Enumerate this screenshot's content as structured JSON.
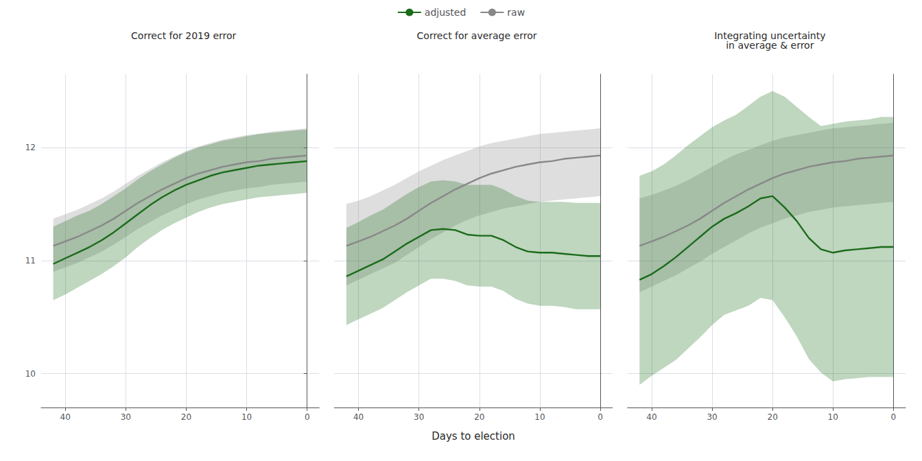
{
  "chart_data": [
    {
      "type": "line",
      "title": "Correct for 2019 error",
      "x": [
        42,
        40,
        38,
        36,
        34,
        32,
        30,
        28,
        26,
        24,
        22,
        20,
        18,
        16,
        14,
        12,
        10,
        8,
        6,
        4,
        2,
        0
      ],
      "series": [
        {
          "name": "adjusted",
          "color": "#1a6b1a",
          "values": [
            10.97,
            11.02,
            11.07,
            11.12,
            11.18,
            11.25,
            11.33,
            11.41,
            11.49,
            11.56,
            11.62,
            11.67,
            11.71,
            11.75,
            11.78,
            11.8,
            11.82,
            11.84,
            11.85,
            11.86,
            11.87,
            11.88
          ],
          "lower": [
            10.65,
            10.7,
            10.76,
            10.82,
            10.88,
            10.95,
            11.03,
            11.12,
            11.2,
            11.27,
            11.33,
            11.38,
            11.43,
            11.47,
            11.5,
            11.52,
            11.54,
            11.56,
            11.57,
            11.58,
            11.59,
            11.6
          ],
          "upper": [
            11.3,
            11.35,
            11.4,
            11.44,
            11.5,
            11.57,
            11.64,
            11.72,
            11.79,
            11.85,
            11.91,
            11.96,
            12.0,
            12.03,
            12.06,
            12.08,
            12.1,
            12.12,
            12.13,
            12.14,
            12.15,
            12.16
          ]
        },
        {
          "name": "raw",
          "color": "#888888",
          "values": [
            11.13,
            11.17,
            11.21,
            11.26,
            11.31,
            11.37,
            11.44,
            11.51,
            11.57,
            11.63,
            11.68,
            11.73,
            11.77,
            11.8,
            11.83,
            11.85,
            11.87,
            11.88,
            11.9,
            11.91,
            11.92,
            11.93
          ],
          "lower": [
            10.9,
            10.94,
            10.98,
            11.03,
            11.08,
            11.14,
            11.21,
            11.28,
            11.34,
            11.4,
            11.45,
            11.5,
            11.54,
            11.57,
            11.6,
            11.62,
            11.64,
            11.65,
            11.67,
            11.68,
            11.69,
            11.7
          ],
          "upper": [
            11.37,
            11.41,
            11.45,
            11.5,
            11.55,
            11.61,
            11.68,
            11.75,
            11.81,
            11.87,
            11.92,
            11.97,
            12.01,
            12.04,
            12.07,
            12.09,
            12.11,
            12.12,
            12.14,
            12.15,
            12.16,
            12.17
          ]
        }
      ],
      "xlim": [
        44,
        -2
      ],
      "ylim": [
        9.7,
        12.65
      ],
      "xticks": [
        40,
        30,
        20,
        10,
        0
      ],
      "yticks": [
        10,
        11,
        12
      ],
      "grid": true,
      "legend": "top"
    },
    {
      "type": "line",
      "title": "Correct for average error",
      "xlabel": "Days to election",
      "x": [
        42,
        40,
        38,
        36,
        34,
        32,
        30,
        28,
        26,
        24,
        22,
        20,
        18,
        16,
        14,
        12,
        10,
        8,
        6,
        4,
        2,
        0
      ],
      "series": [
        {
          "name": "adjusted",
          "color": "#1a6b1a",
          "values": [
            10.86,
            10.91,
            10.96,
            11.01,
            11.08,
            11.15,
            11.21,
            11.27,
            11.28,
            11.27,
            11.23,
            11.22,
            11.22,
            11.18,
            11.12,
            11.08,
            11.07,
            11.07,
            11.06,
            11.05,
            11.04,
            11.04
          ],
          "lower": [
            10.43,
            10.48,
            10.53,
            10.58,
            10.65,
            10.72,
            10.78,
            10.84,
            10.84,
            10.82,
            10.78,
            10.77,
            10.77,
            10.73,
            10.66,
            10.62,
            10.6,
            10.6,
            10.59,
            10.57,
            10.57,
            10.57
          ],
          "upper": [
            11.29,
            11.34,
            11.4,
            11.45,
            11.52,
            11.59,
            11.65,
            11.7,
            11.71,
            11.7,
            11.67,
            11.67,
            11.67,
            11.63,
            11.57,
            11.53,
            11.52,
            11.52,
            11.52,
            11.51,
            11.51,
            11.51
          ]
        },
        {
          "name": "raw",
          "color": "#888888",
          "values": [
            11.13,
            11.17,
            11.21,
            11.26,
            11.31,
            11.37,
            11.44,
            11.51,
            11.57,
            11.63,
            11.68,
            11.73,
            11.77,
            11.8,
            11.83,
            11.85,
            11.87,
            11.88,
            11.9,
            11.91,
            11.92,
            11.93
          ],
          "lower": [
            10.78,
            10.83,
            10.88,
            10.93,
            10.98,
            11.05,
            11.12,
            11.19,
            11.25,
            11.31,
            11.36,
            11.4,
            11.43,
            11.46,
            11.48,
            11.5,
            11.52,
            11.53,
            11.54,
            11.55,
            11.56,
            11.57
          ],
          "upper": [
            11.5,
            11.53,
            11.57,
            11.62,
            11.67,
            11.73,
            11.79,
            11.84,
            11.89,
            11.93,
            11.97,
            12.01,
            12.04,
            12.06,
            12.08,
            12.1,
            12.12,
            12.13,
            12.14,
            12.15,
            12.16,
            12.17
          ]
        }
      ],
      "xlim": [
        44,
        -2
      ],
      "ylim": [
        9.7,
        12.65
      ],
      "xticks": [
        40,
        30,
        20,
        10,
        0
      ],
      "yticks": [
        10,
        11,
        12
      ],
      "grid": true,
      "legend": "top",
      "tick_labels": "x"
    },
    {
      "type": "line",
      "title": "Integrating uncertainty\nin average & error",
      "x": [
        42,
        40,
        38,
        36,
        34,
        32,
        30,
        28,
        26,
        24,
        22,
        20,
        18,
        16,
        14,
        12,
        10,
        8,
        6,
        4,
        2,
        0
      ],
      "series": [
        {
          "name": "adjusted",
          "color": "#1a6b1a",
          "values": [
            10.83,
            10.88,
            10.95,
            11.03,
            11.12,
            11.21,
            11.3,
            11.37,
            11.42,
            11.48,
            11.55,
            11.57,
            11.47,
            11.35,
            11.2,
            11.1,
            11.07,
            11.09,
            11.1,
            11.11,
            11.12,
            11.12
          ],
          "lower": [
            9.9,
            9.98,
            10.05,
            10.12,
            10.22,
            10.32,
            10.43,
            10.52,
            10.56,
            10.6,
            10.67,
            10.65,
            10.5,
            10.33,
            10.13,
            10.01,
            9.93,
            9.95,
            9.96,
            9.97,
            9.97,
            9.97
          ],
          "upper": [
            11.75,
            11.79,
            11.85,
            11.93,
            12.02,
            12.1,
            12.18,
            12.24,
            12.29,
            12.37,
            12.45,
            12.5,
            12.45,
            12.36,
            12.27,
            12.19,
            12.21,
            12.23,
            12.24,
            12.25,
            12.27,
            12.27
          ]
        },
        {
          "name": "raw",
          "color": "#888888",
          "values": [
            11.13,
            11.17,
            11.21,
            11.26,
            11.31,
            11.37,
            11.44,
            11.51,
            11.57,
            11.63,
            11.68,
            11.73,
            11.77,
            11.8,
            11.83,
            11.85,
            11.87,
            11.88,
            11.9,
            11.91,
            11.92,
            11.93
          ],
          "lower": [
            10.72,
            10.77,
            10.82,
            10.87,
            10.93,
            10.99,
            11.06,
            11.12,
            11.18,
            11.24,
            11.29,
            11.33,
            11.37,
            11.4,
            11.43,
            11.45,
            11.47,
            11.48,
            11.49,
            11.5,
            11.51,
            11.52
          ],
          "upper": [
            11.55,
            11.58,
            11.62,
            11.66,
            11.71,
            11.77,
            11.83,
            11.89,
            11.94,
            11.98,
            12.02,
            12.06,
            12.09,
            12.11,
            12.13,
            12.15,
            12.17,
            12.18,
            12.19,
            12.2,
            12.21,
            12.22
          ]
        }
      ],
      "xlim": [
        44,
        -2
      ],
      "ylim": [
        9.7,
        12.65
      ],
      "xticks": [
        40,
        30,
        20,
        10,
        0
      ],
      "yticks": [
        10,
        11,
        12
      ],
      "grid": true,
      "legend": "top",
      "tick_labels": "x"
    }
  ]
}
